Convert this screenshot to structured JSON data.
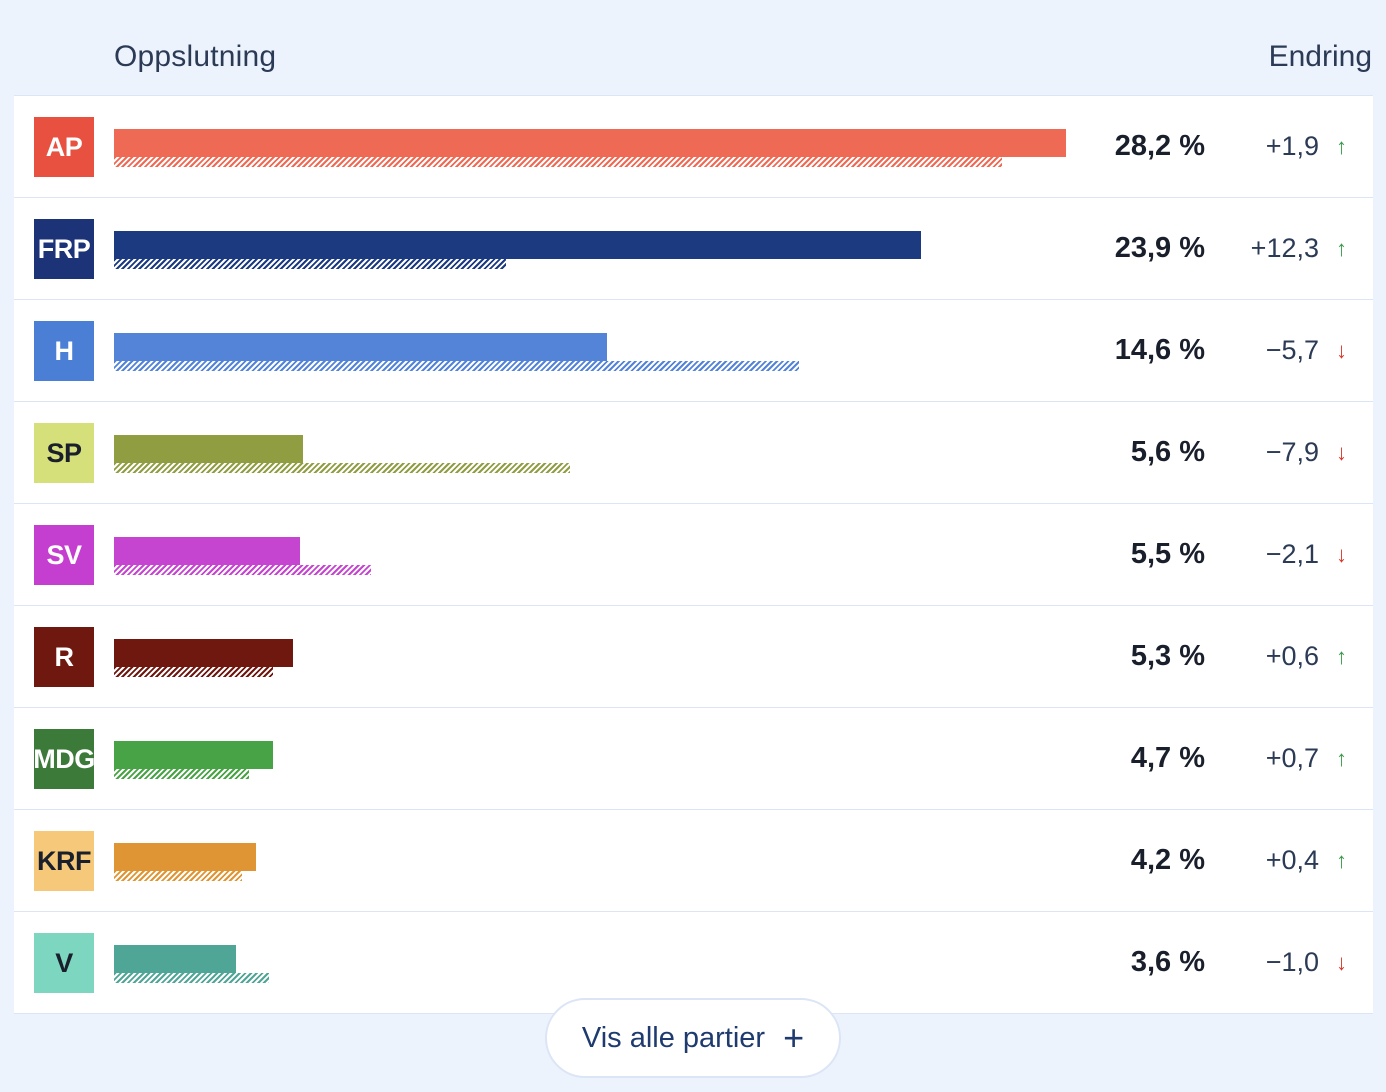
{
  "header": {
    "left_label": "Oppslutning",
    "right_label": "Endring"
  },
  "chart_data": {
    "type": "bar",
    "categories": [
      "AP",
      "FRP",
      "H",
      "SP",
      "SV",
      "R",
      "MDG",
      "KRF",
      "V"
    ],
    "series": [
      {
        "values": [
          28.2,
          23.9,
          14.6,
          5.6,
          5.5,
          5.3,
          4.7,
          4.2,
          3.6
        ]
      },
      {
        "values": [
          26.3,
          11.6,
          20.3,
          13.5,
          7.6,
          4.7,
          4.0,
          3.8,
          4.6
        ]
      }
    ],
    "value_labels": [
      "28,2 %",
      "23,9 %",
      "14,6 %",
      "5,6 %",
      "5,5 %",
      "5,3 %",
      "4,7 %",
      "4,2 %",
      "3,6 %"
    ],
    "change_labels": [
      "+1,9",
      "+12,3",
      "−5,7",
      "−7,9",
      "−2,1",
      "+0,6",
      "+0,7",
      "+0,4",
      "−1,0"
    ],
    "change_direction": [
      "up",
      "up",
      "down",
      "down",
      "down",
      "up",
      "up",
      "up",
      "down"
    ],
    "xlim": [
      0,
      28.2
    ]
  },
  "parties": [
    {
      "badge_bg": "#e8513f",
      "badge_fg": "#ffffff",
      "bar": "#ee6a55"
    },
    {
      "badge_bg": "#1d3378",
      "badge_fg": "#ffffff",
      "bar": "#1b3a80"
    },
    {
      "badge_bg": "#4a7fd5",
      "badge_fg": "#ffffff",
      "bar": "#5484d8"
    },
    {
      "badge_bg": "#d6e07a",
      "badge_fg": "#1a1f2c",
      "bar": "#909d40"
    },
    {
      "badge_bg": "#c43fcf",
      "badge_fg": "#ffffff",
      "bar": "#c544d0"
    },
    {
      "badge_bg": "#6e1810",
      "badge_fg": "#ffffff",
      "bar": "#6e1810"
    },
    {
      "badge_bg": "#3c7a3a",
      "badge_fg": "#ffffff",
      "bar": "#48a346"
    },
    {
      "badge_bg": "#f5c87a",
      "badge_fg": "#1a1f2c",
      "bar": "#df9534"
    },
    {
      "badge_bg": "#7dd6c0",
      "badge_fg": "#1a1f2c",
      "bar": "#4fa596"
    }
  ],
  "colors": {
    "up": "#3a9a4a",
    "down": "#d8392b"
  },
  "icons": {
    "up": "arrow-up-icon",
    "down": "arrow-down-icon",
    "plus": "plus-icon"
  },
  "show_more": {
    "label": "Vis alle partier"
  }
}
